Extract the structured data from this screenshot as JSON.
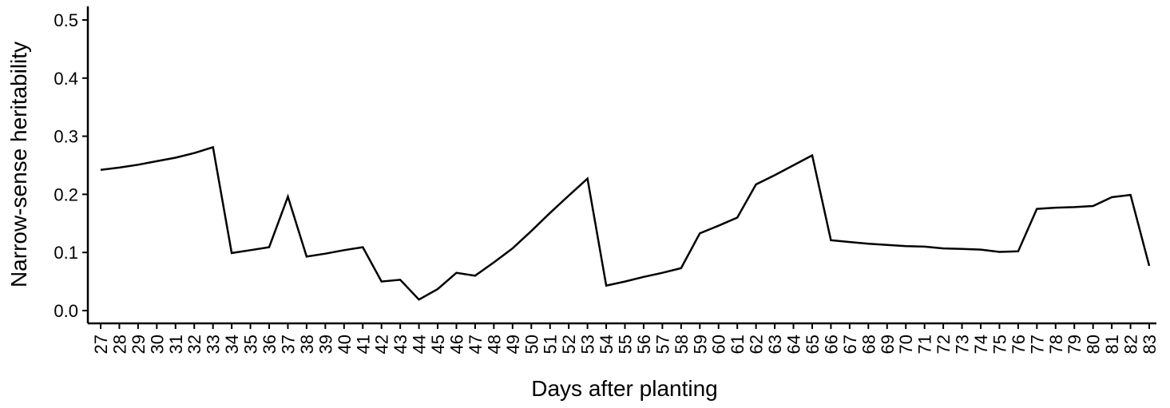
{
  "chart_data": {
    "type": "line",
    "title": "",
    "xlabel": "Days after planting",
    "ylabel": "Narrow-sense heritability",
    "ylim": [
      0,
      0.5
    ],
    "yticks": [
      "0.0",
      "0.1",
      "0.2",
      "0.3",
      "0.4",
      "0.5"
    ],
    "grid": false,
    "categories": [
      "27",
      "28",
      "29",
      "30",
      "31",
      "32",
      "33",
      "34",
      "35",
      "36",
      "37",
      "38",
      "39",
      "40",
      "41",
      "42",
      "43",
      "44",
      "45",
      "46",
      "47",
      "48",
      "49",
      "50",
      "51",
      "52",
      "53",
      "54",
      "55",
      "56",
      "57",
      "58",
      "59",
      "60",
      "61",
      "62",
      "63",
      "64",
      "65",
      "66",
      "67",
      "68",
      "69",
      "70",
      "71",
      "72",
      "73",
      "74",
      "75",
      "76",
      "77",
      "78",
      "79",
      "80",
      "81",
      "82",
      "83"
    ],
    "series": [
      {
        "values": [
          0.242,
          0.246,
          0.251,
          0.257,
          0.263,
          0.271,
          0.281,
          0.099,
          0.104,
          0.109,
          0.196,
          0.093,
          0.098,
          0.104,
          0.109,
          0.05,
          0.053,
          0.019,
          0.037,
          0.065,
          0.06,
          0.083,
          0.107,
          0.137,
          0.168,
          0.198,
          0.227,
          0.043,
          0.05,
          0.058,
          0.065,
          0.073,
          0.133,
          0.146,
          0.16,
          0.217,
          0.233,
          0.25,
          0.267,
          0.121,
          0.118,
          0.115,
          0.113,
          0.111,
          0.11,
          0.107,
          0.106,
          0.105,
          0.101,
          0.102,
          0.175,
          0.177,
          0.178,
          0.18,
          0.195,
          0.199,
          0.077
        ]
      }
    ]
  }
}
